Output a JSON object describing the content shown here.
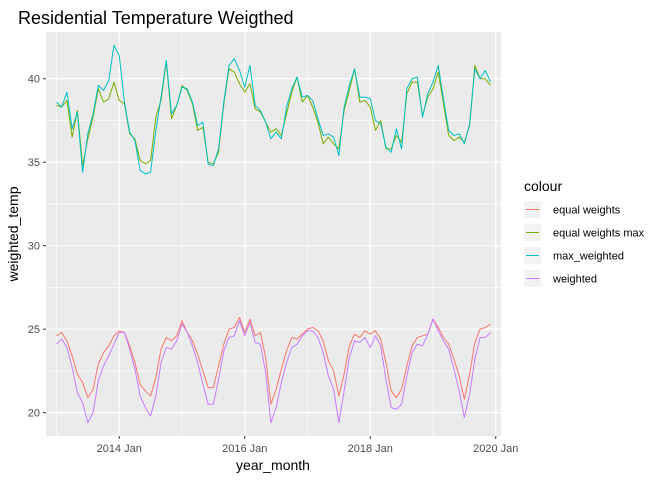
{
  "chart_data": {
    "type": "line",
    "title": "Residential Temperature Weigthed",
    "xlabel": "year_month",
    "ylabel": "weighted_temp",
    "x_start": "2013-01",
    "x_step": "1 month",
    "xlim": [
      "2012-11",
      "2020-02"
    ],
    "ylim": [
      18.6,
      42.8
    ],
    "x_ticks": [
      {
        "value": "2014-01",
        "label": "2014 Jan"
      },
      {
        "value": "2016-01",
        "label": "2016 Jan"
      },
      {
        "value": "2018-01",
        "label": "2018 Jan"
      },
      {
        "value": "2020-01",
        "label": "2020 Jan"
      }
    ],
    "y_ticks": [
      20,
      25,
      30,
      35,
      40
    ],
    "grid": true,
    "legend": {
      "title": "colour",
      "position": "right"
    },
    "series": [
      {
        "name": "equal weights",
        "color": "#F8766D",
        "values": [
          24.6,
          24.8,
          24.3,
          23.4,
          22.3,
          21.8,
          20.9,
          21.4,
          22.9,
          23.6,
          24.0,
          24.6,
          24.9,
          24.8,
          24.0,
          23.0,
          21.7,
          21.3,
          21.0,
          22.1,
          23.8,
          24.5,
          24.3,
          24.6,
          25.5,
          24.8,
          24.3,
          23.5,
          22.5,
          21.5,
          21.5,
          22.8,
          24.1,
          25.0,
          25.1,
          25.7,
          24.8,
          25.6,
          24.6,
          24.8,
          23.3,
          20.5,
          21.4,
          22.6,
          23.7,
          24.5,
          24.4,
          24.7,
          25.0,
          25.1,
          24.9,
          24.3,
          23.1,
          22.5,
          21.0,
          22.3,
          24.0,
          24.7,
          24.5,
          24.9,
          24.7,
          24.9,
          24.4,
          23.0,
          21.3,
          20.9,
          21.4,
          22.8,
          24.0,
          24.5,
          24.6,
          24.7,
          25.6,
          25.1,
          24.5,
          24.1,
          23.2,
          22.2,
          20.8,
          22.3,
          24.2,
          25.0,
          25.1,
          25.3
        ]
      },
      {
        "name": "equal weights max",
        "color": "#7CAE00",
        "values": [
          38.4,
          38.3,
          38.7,
          36.5,
          38.1,
          34.8,
          36.4,
          37.7,
          39.4,
          38.6,
          38.8,
          39.8,
          38.7,
          38.5,
          36.7,
          36.4,
          35.1,
          34.9,
          35.1,
          37.7,
          38.7,
          41.0,
          37.6,
          38.4,
          39.6,
          39.3,
          38.5,
          36.9,
          37.1,
          35.0,
          34.9,
          35.6,
          38.5,
          40.6,
          40.4,
          39.7,
          39.2,
          39.7,
          38.2,
          38.0,
          37.4,
          36.8,
          37.0,
          36.6,
          37.9,
          39.2,
          40.1,
          38.6,
          39.0,
          38.3,
          37.4,
          36.1,
          36.5,
          36.1,
          35.8,
          38.1,
          39.3,
          40.6,
          38.6,
          38.7,
          38.3,
          36.9,
          37.5,
          35.8,
          35.8,
          36.6,
          36.2,
          39.1,
          39.8,
          39.8,
          37.8,
          38.9,
          39.4,
          40.4,
          38.5,
          36.6,
          36.3,
          36.5,
          36.2,
          37.2,
          40.8,
          40.0,
          40.0,
          39.6
        ]
      },
      {
        "name": "max_weighted",
        "color": "#00BFC4",
        "values": [
          38.6,
          38.3,
          39.2,
          37.0,
          38.0,
          34.4,
          36.7,
          37.9,
          39.6,
          39.3,
          39.9,
          42.0,
          41.4,
          38.6,
          36.8,
          36.3,
          34.5,
          34.3,
          34.4,
          36.9,
          38.9,
          41.1,
          37.9,
          38.4,
          39.5,
          39.4,
          38.6,
          37.2,
          37.4,
          34.9,
          34.8,
          35.8,
          38.6,
          40.8,
          41.2,
          40.5,
          39.5,
          40.8,
          38.4,
          38.1,
          37.4,
          36.4,
          36.8,
          36.4,
          38.3,
          39.4,
          40.1,
          38.9,
          39.0,
          38.7,
          37.6,
          36.6,
          36.7,
          36.5,
          35.4,
          38.3,
          39.6,
          40.6,
          38.9,
          38.9,
          38.8,
          37.5,
          37.3,
          35.9,
          35.6,
          37.0,
          35.8,
          39.4,
          40.0,
          40.1,
          37.7,
          39.1,
          39.8,
          40.8,
          38.8,
          36.9,
          36.6,
          36.7,
          36.1,
          37.3,
          40.6,
          40.0,
          40.5,
          39.8
        ]
      },
      {
        "name": "weighted",
        "color": "#C77CFF",
        "values": [
          24.1,
          24.4,
          23.9,
          22.7,
          21.2,
          20.6,
          19.4,
          20.0,
          21.9,
          22.8,
          23.4,
          24.1,
          24.8,
          24.8,
          23.8,
          22.6,
          21.0,
          20.3,
          19.8,
          21.0,
          23.0,
          23.9,
          23.8,
          24.3,
          25.3,
          24.8,
          24.0,
          23.0,
          21.7,
          20.5,
          20.5,
          22.0,
          23.7,
          24.5,
          24.6,
          25.5,
          24.6,
          25.4,
          24.2,
          24.1,
          22.4,
          19.4,
          20.3,
          21.8,
          23.0,
          23.9,
          24.1,
          24.6,
          24.9,
          24.9,
          24.5,
          23.6,
          22.2,
          21.4,
          19.4,
          21.3,
          23.3,
          24.3,
          24.2,
          24.5,
          23.9,
          24.6,
          24.0,
          22.0,
          20.3,
          20.2,
          20.5,
          22.2,
          23.6,
          24.1,
          24.0,
          24.7,
          25.6,
          24.9,
          24.3,
          23.8,
          22.6,
          21.3,
          19.7,
          21.1,
          23.2,
          24.5,
          24.5,
          24.8
        ]
      }
    ]
  }
}
